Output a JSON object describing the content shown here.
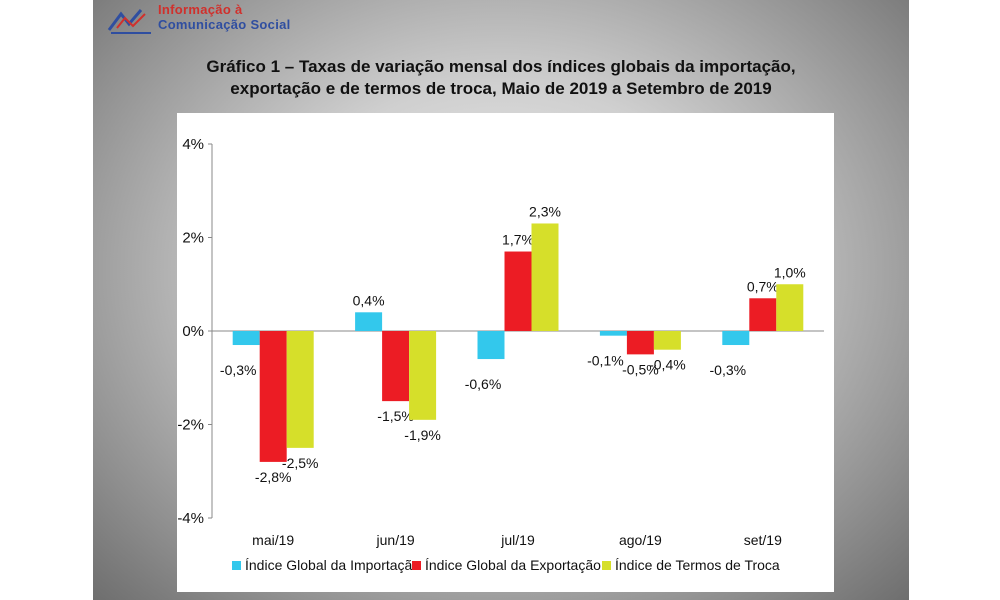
{
  "logo": {
    "line1": "Informação à",
    "line2": "Comunicação Social"
  },
  "title_lines": [
    "Gráfico 1 – Taxas de variação mensal dos índices globais da importação,",
    "exportação e de termos de troca, Maio de 2019 a Setembro de 2019"
  ],
  "chart_data": {
    "type": "bar",
    "title": "Gráfico 1 – Taxas de variação mensal dos índices globais da importação, exportação e de termos de troca, Maio de 2019 a Setembro de 2019",
    "categories": [
      "mai/19",
      "jun/19",
      "jul/19",
      "ago/19",
      "set/19"
    ],
    "series": [
      {
        "name": "Índice Global da Importação",
        "color": "#33c8ec",
        "values": [
          -0.3,
          0.4,
          -0.6,
          -0.1,
          -0.3
        ],
        "labels": [
          "-0,3%",
          "0,4%",
          "-0,6%",
          "-0,1%",
          "-0,3%"
        ]
      },
      {
        "name": "Índice Global da Exportação",
        "color": "#ec1c24",
        "values": [
          -2.8,
          -1.5,
          1.7,
          -0.5,
          0.7
        ],
        "labels": [
          "-2,8%",
          "-1,5%",
          "1,7%",
          "-0,5%",
          "0,7%"
        ]
      },
      {
        "name": "Índice de Termos de Troca",
        "color": "#d6df2a",
        "values": [
          -2.5,
          -1.9,
          2.3,
          -0.4,
          1.0
        ],
        "labels": [
          "-2,5%",
          "-1,9%",
          "2,3%",
          "-0,4%",
          "1,0%"
        ]
      }
    ],
    "yticks": [
      4,
      2,
      0,
      -2,
      -4
    ],
    "ytick_labels": [
      "4%",
      "2%",
      "0%",
      "-2%",
      "-4%"
    ],
    "ylim": [
      -4,
      4
    ],
    "legend_position": "bottom",
    "grid": false
  }
}
